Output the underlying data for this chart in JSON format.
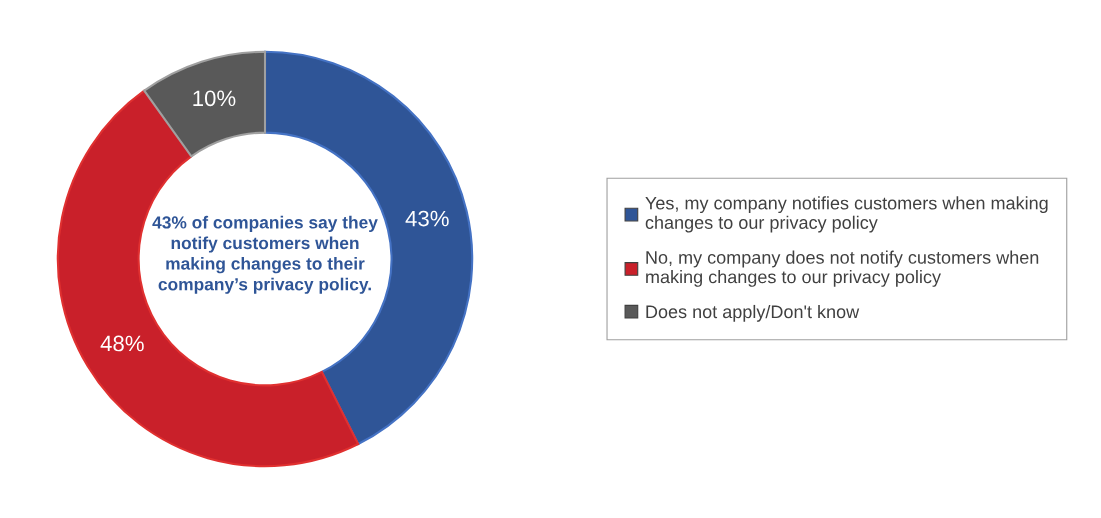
{
  "chart_data": {
    "type": "donut",
    "categories": [
      "Yes, my company notifies customers when making\nchanges to our privacy policy",
      "No, my company does not notify customers when\nmaking changes to our privacy policy",
      "Does not apply/Don't know"
    ],
    "values": [
      43,
      48,
      10
    ],
    "colors": [
      "#2f5597",
      "#c9202a",
      "#595959"
    ],
    "value_labels": [
      "43%",
      "48%",
      "10%"
    ],
    "legend": "right",
    "annotations": [
      "43% of companies say they\nnotify customers when\nmaking changes to their\ncompany’s privacy policy."
    ]
  }
}
